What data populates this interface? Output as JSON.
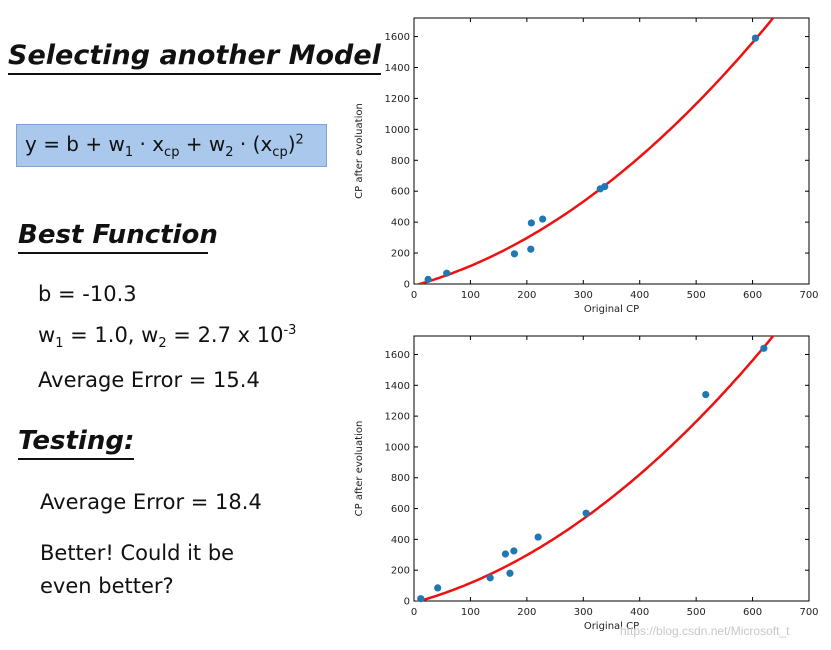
{
  "slide": {
    "title": "Selecting another Model",
    "formula": {
      "y": "y = b + w",
      "sub1": "1",
      "mid1": " · x",
      "sub_cp1": "cp",
      "mid2": " + w",
      "sub2": "2",
      "mid3": " · (x",
      "sub_cp2": "cp",
      "close": ")",
      "sup": "2"
    },
    "best_heading": "Best Function",
    "b_line": "b = -10.3",
    "w_line": {
      "w1": "w",
      "w1_sub": "1",
      "w1_val": " = 1.0, w",
      "w2_sub": "2",
      "w2_val": " = 2.7 x 10",
      "exp": "-3"
    },
    "avg_error_train": "Average Error = 15.4",
    "testing_heading": "Testing:",
    "avg_error_test": "Average Error = 18.4",
    "better_line1": "Better! Could it be",
    "better_line2": "even better?"
  },
  "watermark": "https://blog.csdn.net/Microsoft_t",
  "colors": {
    "points": "#1f77b4",
    "curve": "#ee1111"
  },
  "chart_data": [
    {
      "type": "scatter",
      "xlabel": "Original CP",
      "ylabel": "CP after evoluation",
      "xlim": [
        0,
        700
      ],
      "ylim": [
        0,
        1720
      ],
      "xticks": [
        0,
        100,
        200,
        300,
        400,
        500,
        600,
        700
      ],
      "yticks": [
        0,
        200,
        400,
        600,
        800,
        1000,
        1200,
        1400,
        1600
      ],
      "points": [
        {
          "x": 25,
          "y": 30
        },
        {
          "x": 58,
          "y": 70
        },
        {
          "x": 178,
          "y": 195
        },
        {
          "x": 207,
          "y": 225
        },
        {
          "x": 208,
          "y": 395
        },
        {
          "x": 228,
          "y": 420
        },
        {
          "x": 330,
          "y": 615
        },
        {
          "x": 338,
          "y": 630
        },
        {
          "x": 605,
          "y": 1590
        }
      ],
      "fit": {
        "b": -10.3,
        "w1": 1.0,
        "w2": 0.0027
      }
    },
    {
      "type": "scatter",
      "xlabel": "Original CP",
      "ylabel": "CP after evoluation",
      "xlim": [
        0,
        700
      ],
      "ylim": [
        0,
        1720
      ],
      "xticks": [
        0,
        100,
        200,
        300,
        400,
        500,
        600,
        700
      ],
      "yticks": [
        0,
        200,
        400,
        600,
        800,
        1000,
        1200,
        1400,
        1600
      ],
      "points": [
        {
          "x": 12,
          "y": 15
        },
        {
          "x": 42,
          "y": 85
        },
        {
          "x": 135,
          "y": 150
        },
        {
          "x": 162,
          "y": 305
        },
        {
          "x": 170,
          "y": 180
        },
        {
          "x": 177,
          "y": 325
        },
        {
          "x": 220,
          "y": 415
        },
        {
          "x": 305,
          "y": 570
        },
        {
          "x": 517,
          "y": 1340
        },
        {
          "x": 620,
          "y": 1640
        }
      ],
      "fit": {
        "b": -10.3,
        "w1": 1.0,
        "w2": 0.0027
      }
    }
  ]
}
